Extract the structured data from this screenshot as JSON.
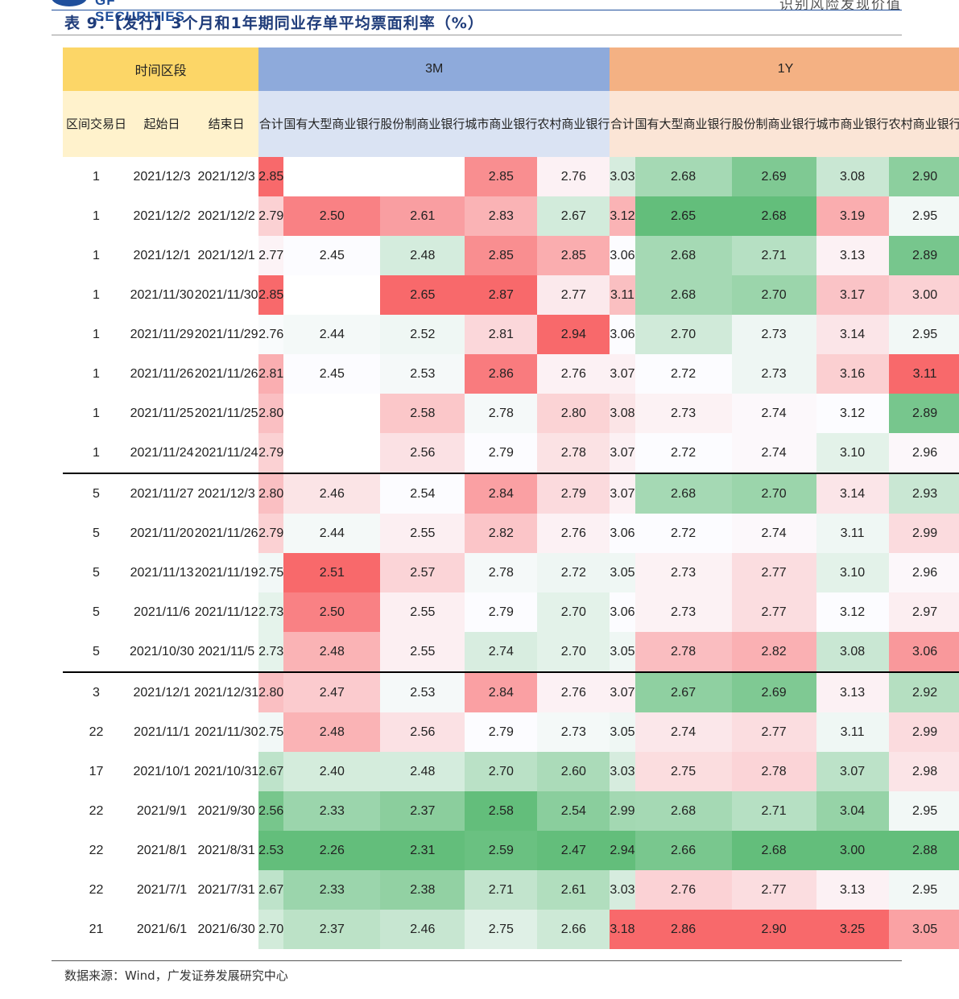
{
  "header": {
    "logo_text": "GF SECURITIES",
    "brand_text": "识别风险发现价值"
  },
  "title": "表 9：【发行】3个月和1年期同业存单平均票面利率（%）",
  "columns": {
    "group_time": "时间区段",
    "group_3m": "3M",
    "group_1y": "1Y",
    "sub": [
      "区间交易日",
      "起始日",
      "结束日",
      "合计",
      "国有大型商业银行",
      "股份制商业银行",
      "城市商业银行",
      "农村商业银行",
      "合计",
      "国有大型商业银行",
      "股份制商业银行",
      "城市商业银行",
      "农村商业银行"
    ]
  },
  "rows": [
    [
      "1",
      "2021/12/3",
      "2021/12/3",
      "2.85",
      "",
      "",
      "2.85",
      "2.76",
      "3.03",
      "2.68",
      "2.69",
      "3.08",
      "2.90"
    ],
    [
      "1",
      "2021/12/2",
      "2021/12/2",
      "2.79",
      "2.50",
      "2.61",
      "2.83",
      "2.67",
      "3.12",
      "2.65",
      "2.68",
      "3.19",
      "2.95"
    ],
    [
      "1",
      "2021/12/1",
      "2021/12/1",
      "2.77",
      "2.45",
      "2.48",
      "2.85",
      "2.85",
      "3.06",
      "2.68",
      "2.71",
      "3.13",
      "2.89"
    ],
    [
      "1",
      "2021/11/30",
      "2021/11/30",
      "2.85",
      "",
      "2.65",
      "2.87",
      "2.77",
      "3.11",
      "2.68",
      "2.70",
      "3.17",
      "3.00"
    ],
    [
      "1",
      "2021/11/29",
      "2021/11/29",
      "2.76",
      "2.44",
      "2.52",
      "2.81",
      "2.94",
      "3.06",
      "2.70",
      "2.73",
      "3.14",
      "2.95"
    ],
    [
      "1",
      "2021/11/26",
      "2021/11/26",
      "2.81",
      "2.45",
      "2.53",
      "2.86",
      "2.76",
      "3.07",
      "2.72",
      "2.73",
      "3.16",
      "3.11"
    ],
    [
      "1",
      "2021/11/25",
      "2021/11/25",
      "2.80",
      "",
      "2.58",
      "2.78",
      "2.80",
      "3.08",
      "2.73",
      "2.74",
      "3.12",
      "2.89"
    ],
    [
      "1",
      "2021/11/24",
      "2021/11/24",
      "2.79",
      "",
      "2.56",
      "2.79",
      "2.78",
      "3.07",
      "2.72",
      "2.74",
      "3.10",
      "2.96"
    ],
    [
      "5",
      "2021/11/27",
      "2021/12/3",
      "2.80",
      "2.46",
      "2.54",
      "2.84",
      "2.79",
      "3.07",
      "2.68",
      "2.70",
      "3.14",
      "2.93"
    ],
    [
      "5",
      "2021/11/20",
      "2021/11/26",
      "2.79",
      "2.44",
      "2.55",
      "2.82",
      "2.76",
      "3.06",
      "2.72",
      "2.74",
      "3.11",
      "2.99"
    ],
    [
      "5",
      "2021/11/13",
      "2021/11/19",
      "2.75",
      "2.51",
      "2.57",
      "2.78",
      "2.72",
      "3.05",
      "2.73",
      "2.77",
      "3.10",
      "2.96"
    ],
    [
      "5",
      "2021/11/6",
      "2021/11/12",
      "2.73",
      "2.50",
      "2.55",
      "2.79",
      "2.70",
      "3.06",
      "2.73",
      "2.77",
      "3.12",
      "2.97"
    ],
    [
      "5",
      "2021/10/30",
      "2021/11/5",
      "2.73",
      "2.48",
      "2.55",
      "2.74",
      "2.70",
      "3.05",
      "2.78",
      "2.82",
      "3.08",
      "3.06"
    ],
    [
      "3",
      "2021/12/1",
      "2021/12/31",
      "2.80",
      "2.47",
      "2.53",
      "2.84",
      "2.76",
      "3.07",
      "2.67",
      "2.69",
      "3.13",
      "2.92"
    ],
    [
      "22",
      "2021/11/1",
      "2021/11/30",
      "2.75",
      "2.48",
      "2.56",
      "2.79",
      "2.73",
      "3.05",
      "2.74",
      "2.77",
      "3.11",
      "2.99"
    ],
    [
      "17",
      "2021/10/1",
      "2021/10/31",
      "2.67",
      "2.40",
      "2.48",
      "2.70",
      "2.60",
      "3.03",
      "2.75",
      "2.78",
      "3.07",
      "2.98"
    ],
    [
      "22",
      "2021/9/1",
      "2021/9/30",
      "2.56",
      "2.33",
      "2.37",
      "2.58",
      "2.54",
      "2.99",
      "2.68",
      "2.71",
      "3.04",
      "2.95"
    ],
    [
      "22",
      "2021/8/1",
      "2021/8/31",
      "2.53",
      "2.26",
      "2.31",
      "2.59",
      "2.47",
      "2.94",
      "2.66",
      "2.68",
      "3.00",
      "2.88"
    ],
    [
      "22",
      "2021/7/1",
      "2021/7/31",
      "2.67",
      "2.33",
      "2.38",
      "2.71",
      "2.61",
      "3.03",
      "2.76",
      "2.77",
      "3.13",
      "2.95"
    ],
    [
      "21",
      "2021/6/1",
      "2021/6/30",
      "2.70",
      "2.37",
      "2.46",
      "2.75",
      "2.66",
      "3.18",
      "2.86",
      "2.90",
      "3.25",
      "3.05"
    ]
  ],
  "group_starts": [
    8,
    13
  ],
  "colors": {
    "header_time": "#fcd667",
    "header_3m": "#8eaadb",
    "header_1y": "#f4b183",
    "sub_time": "#fff2cc",
    "sub_3m": "#dae3f3",
    "sub_1y": "#fbe5d6",
    "heat_low": "#63be7b",
    "heat_mid": "#fcfcff",
    "heat_high": "#f8696b"
  },
  "source": "数据来源：Wind，广发证券发展研究中心"
}
